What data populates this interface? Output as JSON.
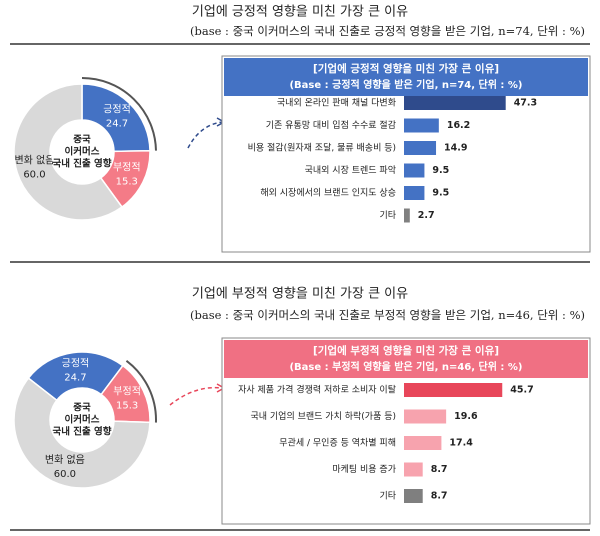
{
  "sections": [
    {
      "title": "기업에 긍정적 영향을 미친 가장 큰 이유",
      "subtitle": "(base : 중국 이커머스의 국내 진출로 긍정적 영향을 받은 기업, n=74, 단위 : %)"
    },
    {
      "title": "기업에 부정적 영향을 미친 가장 큰 이유",
      "subtitle": "(base : 중국 이커머스의 국내 진출로 부정적 영향을 받은 기업, n=46, 단위 : %)"
    }
  ],
  "chart_data": [
    {
      "type": "pie",
      "center_label": [
        "중국",
        "이커머스",
        "국내 진출 영향"
      ],
      "categories": [
        "긍정적",
        "부정적",
        "변화 없음"
      ],
      "values": [
        24.7,
        15.3,
        60.0
      ],
      "value_labels": [
        "24.7",
        "15.3",
        "60.0"
      ],
      "colors": [
        "#4472c4",
        "#f47b87",
        "#d9d9d9"
      ]
    },
    {
      "type": "bar",
      "title": "[기업에 긍정적 영향을 미친 가장 큰 이유]",
      "subtitle": "(Base : 긍정적 영향을 받은 기업, n=74, 단위 : %)",
      "header_color": "#4472c4",
      "categories": [
        "국내외 온라인 판매 채널 다변화",
        "기존 유통망 대비 입점 수수료 절감",
        "비용 절감(원자재 조달, 물류 배송비 등)",
        "국내외 시장 트렌드 파악",
        "해외 시장에서의 브랜드 인지도 상승",
        "기타"
      ],
      "values": [
        47.3,
        16.2,
        14.9,
        9.5,
        9.5,
        2.7
      ],
      "colors": [
        "#2f4b8c",
        "#4472c4",
        "#4472c4",
        "#4472c4",
        "#4472c4",
        "#808080"
      ]
    },
    {
      "type": "pie",
      "center_label": [
        "중국",
        "이커머스",
        "국내 진출 영향"
      ],
      "categories": [
        "긍정적",
        "부정적",
        "변화 없음"
      ],
      "values": [
        24.7,
        15.3,
        60.0
      ],
      "value_labels": [
        "24.7",
        "15.3",
        "60.0"
      ],
      "colors": [
        "#4472c4",
        "#f47b87",
        "#d9d9d9"
      ]
    },
    {
      "type": "bar",
      "title": "[기업에 부정적 영향을 미친 가장 큰 이유]",
      "subtitle": "(Base : 부정적 영향을 받은 기업, n=46, 단위 : %)",
      "header_color": "#f07083",
      "categories": [
        "자사 제품 가격 경쟁력 저하로 소비자 이탈",
        "국내 기업의 브랜드 가치 하락(가품 등)",
        "무관세 / 무인증 등 역차별 피해",
        "마케팅 비용 증가",
        "기타"
      ],
      "values": [
        45.7,
        19.6,
        17.4,
        8.7,
        8.7
      ],
      "colors": [
        "#e8465a",
        "#f7a3ae",
        "#f7a3ae",
        "#f7a3ae",
        "#7f7f7f"
      ]
    }
  ]
}
